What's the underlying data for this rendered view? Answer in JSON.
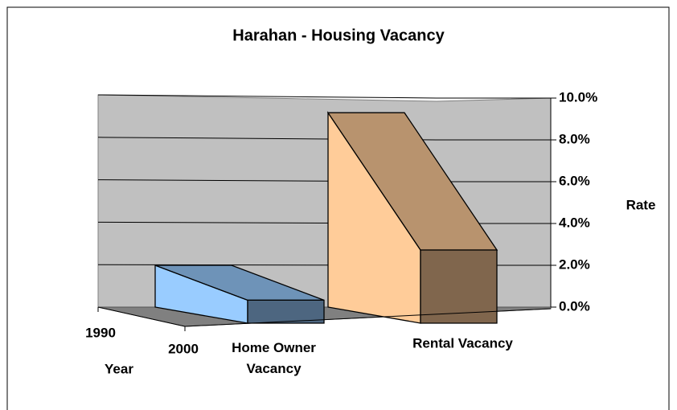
{
  "chart_data": {
    "type": "area3d",
    "title": "Harahan - Housing Vacancy",
    "categories": [
      "Home Owner Vacancy",
      "Rental Vacancy"
    ],
    "series": [
      {
        "name": "1990",
        "values": [
          2.0,
          9.3
        ]
      },
      {
        "name": "2000",
        "values": [
          1.1,
          3.5
        ]
      }
    ],
    "category_colors": [
      "#99ccff",
      "#ffcc99"
    ],
    "depth_axis_label": "Year",
    "y_axis_label": "Rate",
    "ylim": [
      0,
      10
    ],
    "yticks": [
      {
        "value": 0,
        "label": "0.0%"
      },
      {
        "value": 2,
        "label": "2.0%"
      },
      {
        "value": 4,
        "label": "4.0%"
      },
      {
        "value": 6,
        "label": "6.0%"
      },
      {
        "value": 8,
        "label": "8.0%"
      },
      {
        "value": 10,
        "label": "10.0%"
      }
    ],
    "grid": true
  }
}
